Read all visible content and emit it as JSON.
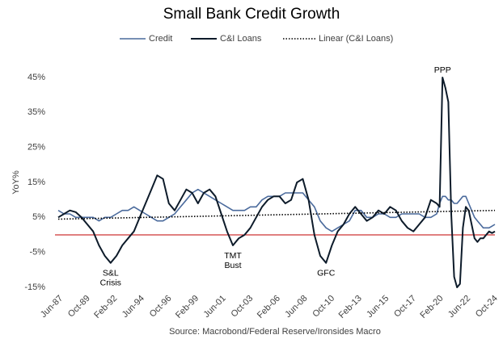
{
  "chart_data": {
    "type": "line",
    "title": "Small Bank Credit Growth",
    "y_label": "YoY%",
    "source": "Source: Macrobond/Federal Reserve/Ironsides Macro",
    "x": [
      "Jun-87",
      "Dec-87",
      "Jun-88",
      "Dec-88",
      "Jun-89",
      "Dec-89",
      "Jun-90",
      "Dec-90",
      "Jun-91",
      "Dec-91",
      "Jun-92",
      "Dec-92",
      "Jun-93",
      "Dec-93",
      "Jun-94",
      "Dec-94",
      "Jun-95",
      "Dec-95",
      "Jun-96",
      "Dec-96",
      "Jun-97",
      "Dec-97",
      "Jun-98",
      "Dec-98",
      "Jun-99",
      "Dec-99",
      "Jun-00",
      "Dec-00",
      "Jun-01",
      "Dec-01",
      "Jun-02",
      "Dec-02",
      "Jun-03",
      "Dec-03",
      "Jun-04",
      "Dec-04",
      "Jun-05",
      "Dec-05",
      "Jun-06",
      "Dec-06",
      "Jun-07",
      "Dec-07",
      "Jun-08",
      "Dec-08",
      "Jun-09",
      "Dec-09",
      "Jun-10",
      "Dec-10",
      "Jun-11",
      "Dec-11",
      "Jun-12",
      "Dec-12",
      "Jun-13",
      "Dec-13",
      "Jun-14",
      "Dec-14",
      "Jun-15",
      "Dec-15",
      "Jun-16",
      "Dec-16",
      "Jun-17",
      "Dec-17",
      "Jun-18",
      "Dec-18",
      "Jun-19",
      "Dec-19",
      "Mar-20",
      "Jun-20",
      "Sep-20",
      "Dec-20",
      "Mar-21",
      "Jun-21",
      "Sep-21",
      "Dec-21",
      "Mar-22",
      "Jun-22",
      "Sep-22",
      "Dec-22",
      "Mar-23",
      "Jun-23",
      "Sep-23",
      "Dec-23",
      "Mar-24",
      "Jun-24",
      "Sep-24",
      "Dec-24"
    ],
    "series": [
      {
        "name": "Credit",
        "color": "#4a6a9c",
        "width": 1.6,
        "values": [
          7,
          6,
          6,
          5,
          5,
          5,
          5,
          4,
          5,
          5,
          6,
          7,
          7,
          8,
          7,
          6,
          5,
          4,
          4,
          5,
          6,
          8,
          10,
          12,
          13,
          12,
          11,
          10,
          9,
          8,
          7,
          7,
          7,
          8,
          8,
          10,
          11,
          11,
          11,
          12,
          12,
          12,
          12,
          10,
          8,
          4,
          2,
          1,
          2,
          3,
          4,
          7,
          7,
          5,
          5,
          6,
          6,
          5,
          5,
          6,
          6,
          6,
          6,
          5,
          5,
          6,
          9,
          11,
          11,
          10,
          10,
          9,
          9,
          10,
          11,
          11,
          9,
          7,
          5,
          4,
          3,
          2,
          2,
          2,
          2.5,
          3
        ]
      },
      {
        "name": "C&I Loans",
        "color": "#0d1b2a",
        "width": 2,
        "values": [
          5,
          6,
          7,
          6.5,
          5,
          3,
          1,
          -3,
          -6,
          -8,
          -6,
          -3,
          -1,
          1,
          5,
          9,
          13,
          17,
          16,
          9,
          7,
          10,
          13,
          12,
          9,
          12,
          13,
          11,
          6,
          1,
          -3,
          -1,
          0,
          2,
          5,
          8,
          10,
          11,
          11,
          9,
          10,
          15,
          16,
          10,
          0,
          -6,
          -8,
          -3,
          1,
          3,
          6,
          8,
          6,
          4,
          5,
          7,
          6,
          8,
          7,
          4,
          2,
          1,
          3,
          5,
          10,
          9,
          8,
          45,
          42,
          38,
          6,
          -12,
          -15,
          -14,
          2,
          8,
          7,
          3,
          -1,
          -2,
          -1,
          -1,
          0,
          1,
          0.5,
          1
        ]
      },
      {
        "name": "Linear (C&I Loans)",
        "color": "#000000",
        "width": 1.6,
        "dash": "dotted",
        "x": [
          "Jun-87",
          "Dec-24"
        ],
        "values": [
          4.5,
          7
        ]
      }
    ],
    "reference_line": {
      "value": 0,
      "color": "#c00000"
    },
    "annotations": [
      {
        "lines": [
          "S&L",
          "Crisis"
        ],
        "x": "Dec-91",
        "y": -11
      },
      {
        "lines": [
          "TMT",
          "Bust"
        ],
        "x": "Jun-02",
        "y": -6
      },
      {
        "lines": [
          "GFC"
        ],
        "x": "Jun-10",
        "y": -11
      },
      {
        "lines": [
          "PPP"
        ],
        "x": "Jun-20",
        "y": 47
      }
    ],
    "xlim": [
      "Jun-87",
      "Dec-24"
    ],
    "xticks": [
      "Jun-87",
      "Oct-89",
      "Feb-92",
      "Jun-94",
      "Oct-96",
      "Feb-99",
      "Jun-01",
      "Oct-03",
      "Feb-06",
      "Jun-08",
      "Oct-10",
      "Feb-13",
      "Jun-15",
      "Oct-17",
      "Feb-20",
      "Jun-22",
      "Oct-24"
    ],
    "ylim": [
      -15,
      45
    ],
    "yticks": [
      {
        "value": -15,
        "label": "-15%"
      },
      {
        "value": -5,
        "label": "-5%"
      },
      {
        "value": 5,
        "label": "5%"
      },
      {
        "value": 15,
        "label": "15%"
      },
      {
        "value": 25,
        "label": "25%"
      },
      {
        "value": 35,
        "label": "35%"
      },
      {
        "value": 45,
        "label": "45%"
      }
    ],
    "grid": false,
    "legend": "top"
  }
}
